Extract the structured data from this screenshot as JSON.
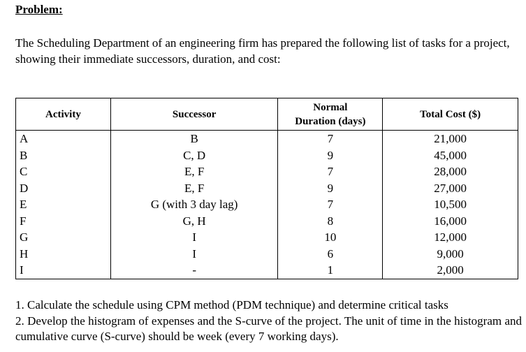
{
  "heading": "Problem:",
  "intro": "The Scheduling Department of an engineering firm has prepared the following list of tasks for a project, showing their immediate successors, duration, and cost:",
  "table": {
    "header": [
      "Activity",
      "Successor",
      [
        "Normal",
        "Duration (days)"
      ],
      "Total Cost ($)"
    ],
    "rows": [
      [
        "A",
        "B",
        "7",
        "21,000"
      ],
      [
        "B",
        "C, D",
        "9",
        "45,000"
      ],
      [
        "C",
        "E, F",
        "7",
        "28,000"
      ],
      [
        "D",
        "E, F",
        "9",
        "27,000"
      ],
      [
        "E",
        "G (with 3 day lag)",
        "7",
        "10,500"
      ],
      [
        "F",
        "G, H",
        "8",
        "16,000"
      ],
      [
        "G",
        "I",
        "10",
        "12,000"
      ],
      [
        "H",
        "I",
        "6",
        "9,000"
      ],
      [
        "I",
        "-",
        "1",
        "2,000"
      ]
    ]
  },
  "tasks": [
    "1. Calculate the schedule using CPM method (PDM technique) and determine critical tasks",
    "2. Develop the histogram of expenses and the S-curve of the project. The unit of time in the histogram and cumulative curve (S-curve) should be week (every 7 working days)."
  ]
}
